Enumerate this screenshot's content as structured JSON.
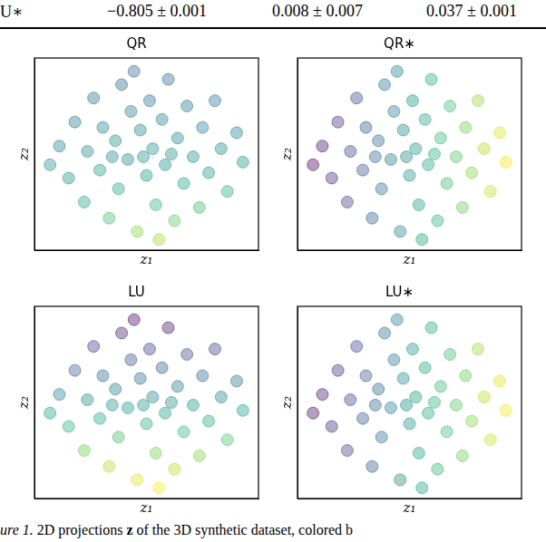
{
  "table_fragment": {
    "label": "U∗",
    "cells": [
      "−0.805 ± 0.001",
      "0.008 ± 0.007",
      "0.037 ± 0.001"
    ]
  },
  "chart_data": [
    {
      "type": "scatter",
      "title": "QR",
      "x_label": "z₁",
      "y_label": "z₂",
      "xlim": [
        -3.6,
        3.6
      ],
      "ylim": [
        -3.6,
        3.6
      ],
      "tick_labels": false,
      "grid": false,
      "color_range": [
        0,
        1
      ],
      "x": [
        -2.8,
        -2.5,
        -2.3,
        -2.0,
        -1.9,
        -1.7,
        -1.5,
        -1.4,
        -1.2,
        -1.0,
        -0.9,
        -0.8,
        -0.6,
        -0.5,
        -0.3,
        -0.2,
        0.0,
        0.1,
        0.2,
        0.3,
        0.5,
        0.6,
        0.7,
        0.9,
        1.0,
        1.2,
        1.3,
        1.5,
        1.7,
        1.8,
        2.0,
        2.2,
        2.4,
        2.6,
        2.9,
        -3.1,
        3.1,
        -0.4,
        0.4,
        -1.1,
        0.8,
        -0.1
      ],
      "y": [
        0.3,
        -0.9,
        1.2,
        -1.8,
        0.1,
        2.1,
        -0.6,
        1.0,
        -2.4,
        0.5,
        -1.3,
        2.6,
        -0.2,
        1.6,
        -2.9,
        0.9,
        -0.8,
        2.0,
        0.2,
        -1.9,
        1.3,
        -0.4,
        2.8,
        -2.5,
        0.6,
        -1.1,
        1.8,
        -0.1,
        -2.0,
        1.0,
        -0.7,
        2.0,
        0.2,
        -1.4,
        0.8,
        -0.4,
        -0.3,
        3.1,
        -3.2,
        -0.1,
        0.0,
        -0.1
      ],
      "color_values": [
        0.45,
        0.52,
        0.4,
        0.6,
        0.48,
        0.38,
        0.55,
        0.44,
        0.7,
        0.5,
        0.58,
        0.35,
        0.47,
        0.42,
        0.82,
        0.46,
        0.53,
        0.39,
        0.51,
        0.65,
        0.43,
        0.49,
        0.36,
        0.75,
        0.47,
        0.57,
        0.41,
        0.5,
        0.68,
        0.44,
        0.54,
        0.4,
        0.48,
        0.62,
        0.45,
        0.5,
        0.52,
        0.33,
        0.85,
        0.49,
        0.51,
        0.5
      ]
    },
    {
      "type": "scatter",
      "title": "QR∗",
      "x_label": "z₁",
      "y_label": "z₂",
      "xlim": [
        -3.6,
        3.6
      ],
      "ylim": [
        -3.6,
        3.6
      ],
      "tick_labels": false,
      "grid": false,
      "color_range": [
        0,
        1
      ],
      "x": [
        -2.8,
        -2.5,
        -2.3,
        -2.0,
        -1.9,
        -1.7,
        -1.5,
        -1.4,
        -1.2,
        -1.0,
        -0.9,
        -0.8,
        -0.6,
        -0.5,
        -0.3,
        -0.2,
        0.0,
        0.1,
        0.2,
        0.3,
        0.5,
        0.6,
        0.7,
        0.9,
        1.0,
        1.2,
        1.3,
        1.5,
        1.7,
        1.8,
        2.0,
        2.2,
        2.4,
        2.6,
        2.9,
        -3.1,
        3.1,
        -0.4,
        0.4,
        -1.1,
        0.8,
        -0.1
      ],
      "y": [
        0.3,
        -0.9,
        1.2,
        -1.8,
        0.1,
        2.1,
        -0.6,
        1.0,
        -2.4,
        0.5,
        -1.3,
        2.6,
        -0.2,
        1.6,
        -2.9,
        0.9,
        -0.8,
        2.0,
        0.2,
        -1.9,
        1.3,
        -0.4,
        2.8,
        -2.5,
        0.6,
        -1.1,
        1.8,
        -0.1,
        -2.0,
        1.0,
        -0.7,
        2.0,
        0.2,
        -1.4,
        0.8,
        -0.4,
        -0.3,
        3.1,
        -3.2,
        -0.1,
        0.0,
        -0.1
      ],
      "color_values": [
        0.06,
        0.11,
        0.14,
        0.19,
        0.2,
        0.23,
        0.27,
        0.28,
        0.31,
        0.34,
        0.36,
        0.38,
        0.41,
        0.42,
        0.45,
        0.47,
        0.5,
        0.52,
        0.53,
        0.55,
        0.58,
        0.59,
        0.61,
        0.64,
        0.66,
        0.69,
        0.7,
        0.73,
        0.77,
        0.78,
        0.81,
        0.84,
        0.88,
        0.91,
        0.95,
        0.02,
        0.98,
        0.44,
        0.56,
        0.33,
        0.63,
        0.48
      ]
    },
    {
      "type": "scatter",
      "title": "LU",
      "x_label": "z₁",
      "y_label": "z₂",
      "xlim": [
        -3.6,
        3.6
      ],
      "ylim": [
        -3.6,
        3.6
      ],
      "tick_labels": false,
      "grid": false,
      "color_range": [
        0,
        1
      ],
      "x": [
        -2.8,
        -2.5,
        -2.3,
        -2.0,
        -1.9,
        -1.7,
        -1.5,
        -1.4,
        -1.2,
        -1.0,
        -0.9,
        -0.8,
        -0.6,
        -0.5,
        -0.3,
        -0.2,
        0.0,
        0.1,
        0.2,
        0.3,
        0.5,
        0.6,
        0.7,
        0.9,
        1.0,
        1.2,
        1.3,
        1.5,
        1.7,
        1.8,
        2.0,
        2.2,
        2.4,
        2.6,
        2.9,
        -3.1,
        3.1,
        -0.4,
        0.4,
        -1.1,
        0.8,
        -0.1
      ],
      "y": [
        0.3,
        -0.9,
        1.2,
        -1.8,
        0.1,
        2.1,
        -0.6,
        1.0,
        -2.4,
        0.5,
        -1.3,
        2.6,
        -0.2,
        1.6,
        -2.9,
        0.9,
        -0.8,
        2.0,
        0.2,
        -1.9,
        1.3,
        -0.4,
        2.8,
        -2.5,
        0.6,
        -1.1,
        1.8,
        -0.1,
        -2.0,
        1.0,
        -0.7,
        2.0,
        0.2,
        -1.4,
        0.8,
        -0.4,
        -0.3,
        3.1,
        -3.2,
        -0.1,
        0.0,
        -0.1
      ],
      "color_values": [
        0.45,
        0.64,
        0.31,
        0.78,
        0.48,
        0.17,
        0.59,
        0.34,
        0.88,
        0.42,
        0.7,
        0.09,
        0.53,
        0.25,
        0.95,
        0.36,
        0.63,
        0.19,
        0.47,
        0.8,
        0.3,
        0.56,
        0.06,
        0.89,
        0.41,
        0.67,
        0.22,
        0.52,
        0.81,
        0.34,
        0.61,
        0.19,
        0.47,
        0.72,
        0.38,
        0.56,
        0.55,
        0.02,
        1.0,
        0.52,
        0.5,
        0.52
      ]
    },
    {
      "type": "scatter",
      "title": "LU∗",
      "x_label": "z₁",
      "y_label": "z₂",
      "xlim": [
        -3.6,
        3.6
      ],
      "ylim": [
        -3.6,
        3.6
      ],
      "tick_labels": false,
      "grid": false,
      "color_range": [
        0,
        1
      ],
      "x": [
        -2.8,
        -2.5,
        -2.3,
        -2.0,
        -1.9,
        -1.7,
        -1.5,
        -1.4,
        -1.2,
        -1.0,
        -0.9,
        -0.8,
        -0.6,
        -0.5,
        -0.3,
        -0.2,
        0.0,
        0.1,
        0.2,
        0.3,
        0.5,
        0.6,
        0.7,
        0.9,
        1.0,
        1.2,
        1.3,
        1.5,
        1.7,
        1.8,
        2.0,
        2.2,
        2.4,
        2.6,
        2.9,
        -3.1,
        3.1,
        -0.4,
        0.4,
        -1.1,
        0.8,
        -0.1
      ],
      "y": [
        0.3,
        -0.9,
        1.2,
        -1.8,
        0.1,
        2.1,
        -0.6,
        1.0,
        -2.4,
        0.5,
        -1.3,
        2.6,
        -0.2,
        1.6,
        -2.9,
        0.9,
        -0.8,
        2.0,
        0.2,
        -1.9,
        1.3,
        -0.4,
        2.8,
        -2.5,
        0.6,
        -1.1,
        1.8,
        -0.1,
        -2.0,
        1.0,
        -0.7,
        2.0,
        0.2,
        -1.4,
        0.8,
        -0.4,
        -0.3,
        3.1,
        -3.2,
        -0.1,
        0.0,
        -0.1
      ],
      "color_values": [
        0.07,
        0.12,
        0.13,
        0.2,
        0.21,
        0.22,
        0.28,
        0.29,
        0.3,
        0.35,
        0.37,
        0.37,
        0.42,
        0.41,
        0.46,
        0.48,
        0.51,
        0.51,
        0.54,
        0.56,
        0.57,
        0.6,
        0.6,
        0.65,
        0.67,
        0.7,
        0.69,
        0.74,
        0.78,
        0.77,
        0.82,
        0.85,
        0.89,
        0.92,
        0.96,
        0.03,
        0.99,
        0.43,
        0.57,
        0.34,
        0.64,
        0.49
      ]
    }
  ],
  "caption": {
    "label": "ure 1.",
    "text_before": "2D projections",
    "symbol": "z",
    "text_after": "of the 3D synthetic dataset, colored b"
  }
}
